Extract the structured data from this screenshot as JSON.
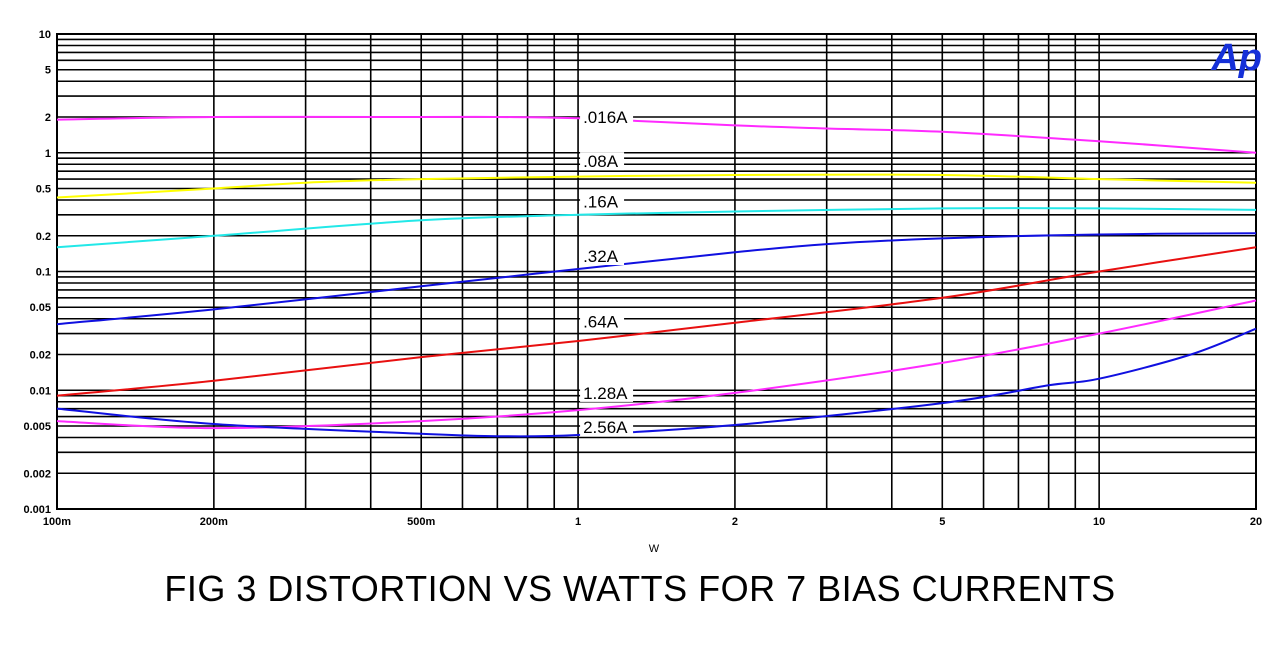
{
  "caption": "FIG 3  DISTORTION VS WATTS FOR 7 BIAS CURRENTS",
  "logo": "Ap",
  "chart_data": {
    "type": "line",
    "title": "FIG 3  DISTORTION VS WATTS FOR 7 BIAS CURRENTS",
    "xlabel": "W",
    "ylabel": "",
    "xscale": "log",
    "yscale": "log",
    "xlim": [
      0.1,
      20
    ],
    "ylim": [
      0.001,
      10
    ],
    "grid": true,
    "x_ticks": [
      {
        "v": 0.1,
        "label": "100m"
      },
      {
        "v": 0.2,
        "label": "200m"
      },
      {
        "v": 0.5,
        "label": "500m"
      },
      {
        "v": 1,
        "label": "1"
      },
      {
        "v": 2,
        "label": "2"
      },
      {
        "v": 5,
        "label": "5"
      },
      {
        "v": 10,
        "label": "10"
      },
      {
        "v": 20,
        "label": "20"
      }
    ],
    "y_ticks": [
      {
        "v": 10,
        "label": "10"
      },
      {
        "v": 5,
        "label": "5"
      },
      {
        "v": 2,
        "label": "2"
      },
      {
        "v": 1,
        "label": "1"
      },
      {
        "v": 0.5,
        "label": "0.5"
      },
      {
        "v": 0.2,
        "label": "0.2"
      },
      {
        "v": 0.1,
        "label": "0.1"
      },
      {
        "v": 0.05,
        "label": "0.05"
      },
      {
        "v": 0.02,
        "label": "0.02"
      },
      {
        "v": 0.01,
        "label": "0.01"
      },
      {
        "v": 0.005,
        "label": "0.005"
      },
      {
        "v": 0.002,
        "label": "0.002"
      },
      {
        "v": 0.001,
        "label": "0.001"
      }
    ],
    "series": [
      {
        "name": ".016A",
        "color": "#ff2aff",
        "x": [
          0.1,
          0.2,
          0.5,
          0.7,
          1,
          2,
          3,
          5,
          10,
          20
        ],
        "y": [
          1.9,
          2.0,
          2.0,
          2.0,
          1.95,
          1.7,
          1.6,
          1.5,
          1.25,
          1.0
        ],
        "label_at": [
          1.0,
          2.0
        ]
      },
      {
        "name": ".08A",
        "color": "#ffff00",
        "x": [
          0.1,
          0.2,
          0.3,
          0.5,
          1,
          2,
          5,
          10,
          20
        ],
        "y": [
          0.42,
          0.5,
          0.56,
          0.6,
          0.63,
          0.65,
          0.65,
          0.6,
          0.56
        ],
        "label_at": [
          1.0,
          0.85
        ]
      },
      {
        "name": ".16A",
        "color": "#22e8e8",
        "x": [
          0.1,
          0.2,
          0.5,
          1,
          2,
          5,
          10,
          20
        ],
        "y": [
          0.16,
          0.2,
          0.27,
          0.3,
          0.32,
          0.34,
          0.34,
          0.33
        ],
        "label_at": [
          1.0,
          0.39
        ]
      },
      {
        "name": ".32A",
        "color": "#1010e0",
        "x": [
          0.1,
          0.2,
          0.5,
          1,
          2,
          3,
          5,
          10,
          20
        ],
        "y": [
          0.036,
          0.048,
          0.075,
          0.105,
          0.145,
          0.17,
          0.19,
          0.205,
          0.21
        ],
        "label_at": [
          1.0,
          0.135
        ]
      },
      {
        "name": ".64A",
        "color": "#e81010",
        "x": [
          0.1,
          0.2,
          0.5,
          1,
          2,
          5,
          10,
          20
        ],
        "y": [
          0.009,
          0.012,
          0.019,
          0.026,
          0.037,
          0.06,
          0.1,
          0.16
        ],
        "label_at": [
          1.0,
          0.038
        ]
      },
      {
        "name": "1.28A",
        "color": "#ff2aff",
        "x": [
          0.1,
          0.2,
          0.5,
          1,
          2,
          5,
          10,
          20
        ],
        "y": [
          0.0055,
          0.0048,
          0.0055,
          0.0068,
          0.0095,
          0.017,
          0.03,
          0.057
        ],
        "label_at": [
          1.0,
          0.0095
        ]
      },
      {
        "name": "2.56A",
        "color": "#1010e0",
        "x": [
          0.1,
          0.2,
          0.5,
          0.7,
          1,
          2,
          5,
          8,
          10,
          15,
          20
        ],
        "y": [
          0.007,
          0.0052,
          0.0043,
          0.0041,
          0.0042,
          0.0051,
          0.0078,
          0.011,
          0.0125,
          0.02,
          0.033
        ],
        "label_at": [
          1.0,
          0.0049
        ]
      }
    ]
  }
}
